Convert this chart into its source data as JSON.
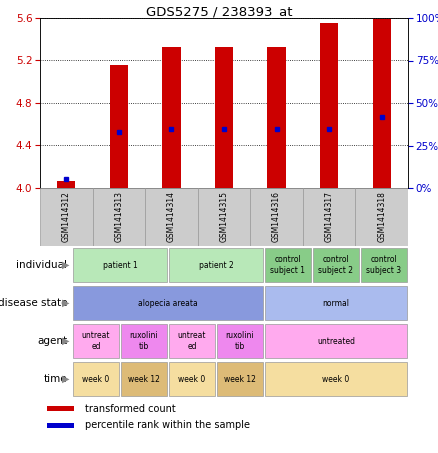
{
  "title": "GDS5275 / 238393_at",
  "samples": [
    "GSM1414312",
    "GSM1414313",
    "GSM1414314",
    "GSM1414315",
    "GSM1414316",
    "GSM1414317",
    "GSM1414318"
  ],
  "transformed_count": [
    4.07,
    5.16,
    5.33,
    5.33,
    5.33,
    5.55,
    5.59
  ],
  "percentile_rank": [
    5,
    33,
    35,
    35,
    35,
    35,
    42
  ],
  "ylim_left": [
    4.0,
    5.6
  ],
  "ylim_right": [
    0,
    100
  ],
  "yticks_left": [
    4.0,
    4.4,
    4.8,
    5.2,
    5.6
  ],
  "yticks_right": [
    0,
    25,
    50,
    75,
    100
  ],
  "bar_color": "#cc0000",
  "dot_color": "#0000cc",
  "axis_color_left": "#cc0000",
  "axis_color_right": "#0000cc",
  "rows": [
    {
      "label": "individual",
      "cells": [
        {
          "text": "patient 1",
          "span": 2,
          "color": "#b8e8b8"
        },
        {
          "text": "patient 2",
          "span": 2,
          "color": "#b8e8b8"
        },
        {
          "text": "control\nsubject 1",
          "span": 1,
          "color": "#88cc88"
        },
        {
          "text": "control\nsubject 2",
          "span": 1,
          "color": "#88cc88"
        },
        {
          "text": "control\nsubject 3",
          "span": 1,
          "color": "#88cc88"
        }
      ]
    },
    {
      "label": "disease state",
      "cells": [
        {
          "text": "alopecia areata",
          "span": 4,
          "color": "#8899dd"
        },
        {
          "text": "normal",
          "span": 3,
          "color": "#aabbee"
        }
      ]
    },
    {
      "label": "agent",
      "cells": [
        {
          "text": "untreat\ned",
          "span": 1,
          "color": "#ffaaee"
        },
        {
          "text": "ruxolini\ntib",
          "span": 1,
          "color": "#ee88ee"
        },
        {
          "text": "untreat\ned",
          "span": 1,
          "color": "#ffaaee"
        },
        {
          "text": "ruxolini\ntib",
          "span": 1,
          "color": "#ee88ee"
        },
        {
          "text": "untreated",
          "span": 3,
          "color": "#ffaaee"
        }
      ]
    },
    {
      "label": "time",
      "cells": [
        {
          "text": "week 0",
          "span": 1,
          "color": "#f5dea0"
        },
        {
          "text": "week 12",
          "span": 1,
          "color": "#ddbb77"
        },
        {
          "text": "week 0",
          "span": 1,
          "color": "#f5dea0"
        },
        {
          "text": "week 12",
          "span": 1,
          "color": "#ddbb77"
        },
        {
          "text": "week 0",
          "span": 3,
          "color": "#f5dea0"
        }
      ]
    }
  ],
  "legend": [
    {
      "color": "#cc0000",
      "label": "transformed count"
    },
    {
      "color": "#0000cc",
      "label": "percentile rank within the sample"
    }
  ],
  "fig_width": 4.38,
  "fig_height": 4.53,
  "dpi": 100
}
